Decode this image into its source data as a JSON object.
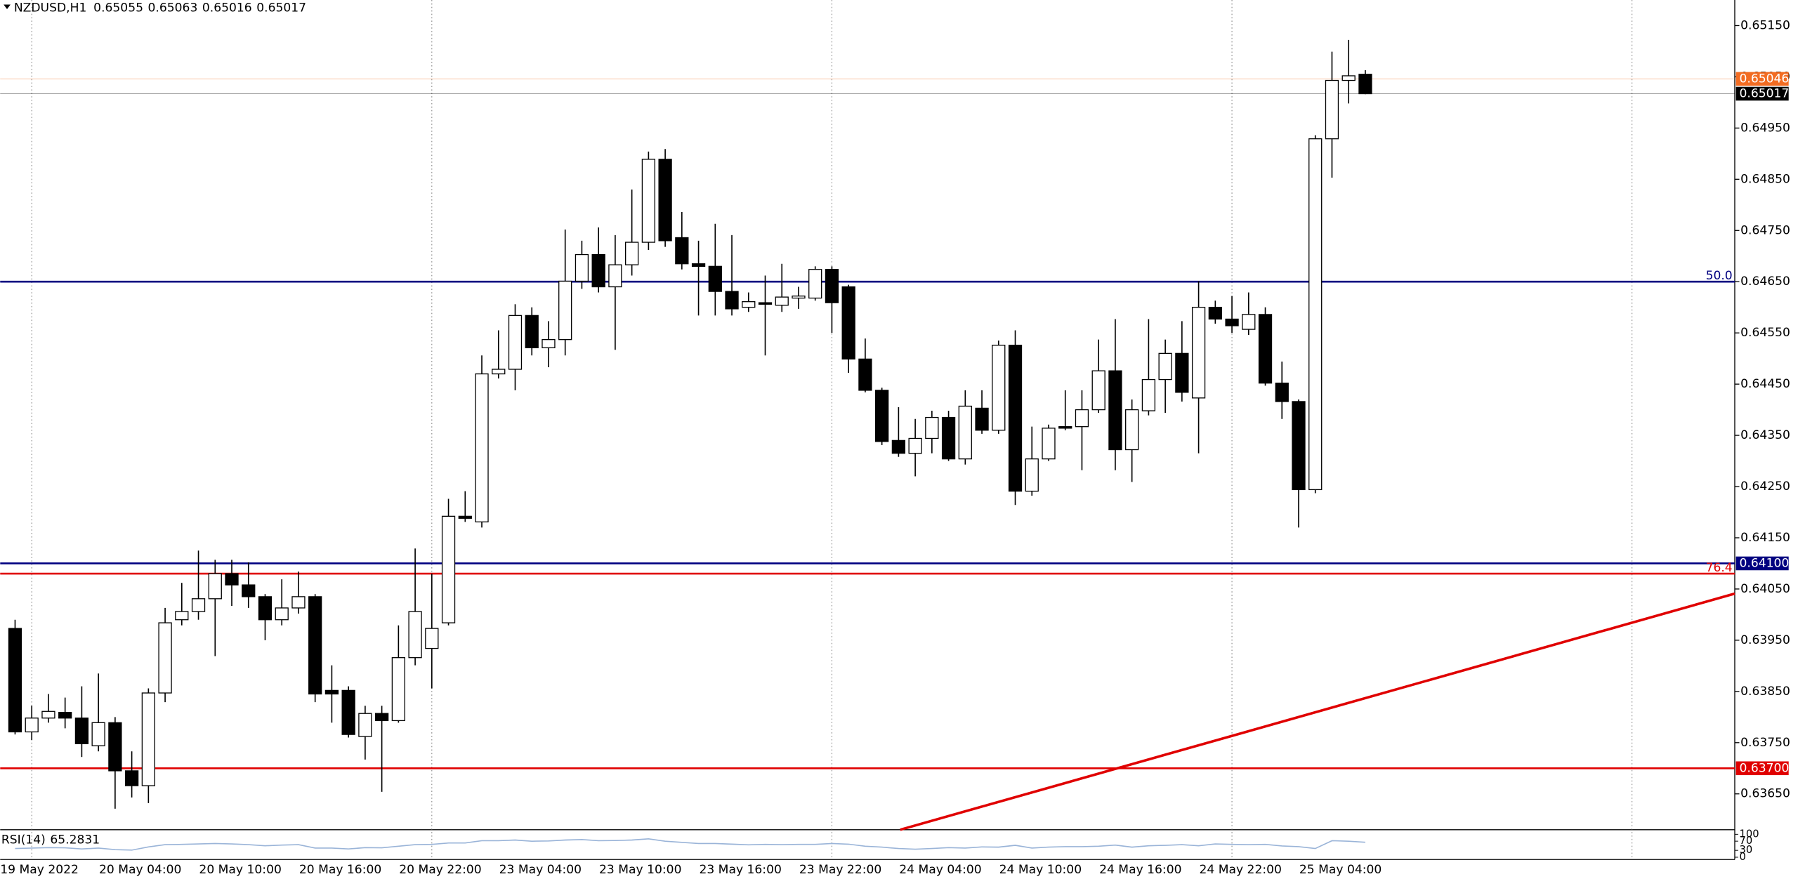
{
  "chart_data": {
    "type": "candlestick",
    "symbol": "NZDUSD,H1",
    "categories": [
      "19 May 2022",
      null,
      null,
      null,
      null,
      null,
      "20 May 04:00",
      null,
      null,
      null,
      null,
      null,
      "20 May 10:00",
      null,
      null,
      null,
      null,
      null,
      "20 May 16:00",
      null,
      null,
      null,
      null,
      null,
      "20 May 22:00",
      null,
      null,
      null,
      null,
      null,
      "23 May 04:00",
      null,
      null,
      null,
      null,
      null,
      "23 May 10:00",
      null,
      null,
      null,
      null,
      null,
      "23 May 16:00",
      null,
      null,
      null,
      null,
      null,
      "23 May 22:00",
      null,
      null,
      null,
      null,
      null,
      "24 May 04:00",
      null,
      null,
      null,
      null,
      null,
      "24 May 10:00",
      null,
      null,
      null,
      null,
      null,
      "24 May 16:00",
      null,
      null,
      null,
      null,
      null,
      "24 May 22:00",
      null,
      null,
      null,
      null,
      null,
      "25 May 04:00",
      null,
      null,
      null
    ],
    "open": [
      0.63973,
      0.63771,
      0.63798,
      0.63809,
      0.63798,
      0.63744,
      0.63789,
      0.63695,
      0.63666,
      0.63847,
      0.6399,
      0.64006,
      0.64031,
      0.6408,
      0.64058,
      0.64035,
      0.6399,
      0.64013,
      0.64035,
      0.63852,
      0.63852,
      0.63762,
      0.63807,
      0.63793,
      0.63916,
      0.63934,
      0.63984,
      0.64192,
      0.64181,
      0.6447,
      0.64479,
      0.64584,
      0.64521,
      0.64537,
      0.64651,
      0.64703,
      0.6464,
      0.64683,
      0.64727,
      0.64889,
      0.64736,
      0.64685,
      0.6468,
      0.64631,
      0.646,
      0.64609,
      0.64604,
      0.64618,
      0.64618,
      0.64674,
      0.6464,
      0.64499,
      0.64438,
      0.6434,
      0.64315,
      0.64344,
      0.64385,
      0.64304,
      0.64403,
      0.6436,
      0.64526,
      0.64241,
      0.64304,
      0.64367,
      0.64367,
      0.644,
      0.64476,
      0.64322,
      0.64398,
      0.64459,
      0.6451,
      0.64423,
      0.646,
      0.64577,
      0.64557,
      0.64586,
      0.64452,
      0.64416,
      0.64244,
      0.64929,
      0.65043,
      0.65055
    ],
    "high": [
      0.6399,
      0.63822,
      0.63845,
      0.63838,
      0.6386,
      0.63885,
      0.638,
      0.63733,
      0.63856,
      0.64013,
      0.64062,
      0.64125,
      0.64107,
      0.64107,
      0.64102,
      0.6404,
      0.64069,
      0.64084,
      0.6404,
      0.63901,
      0.6386,
      0.63822,
      0.63822,
      0.63979,
      0.64129,
      0.6408,
      0.64226,
      0.64241,
      0.64506,
      0.64555,
      0.64606,
      0.646,
      0.64573,
      0.64752,
      0.6473,
      0.64756,
      0.64741,
      0.6483,
      0.64904,
      0.64909,
      0.64786,
      0.6473,
      0.64763,
      0.64741,
      0.64629,
      0.64662,
      0.64685,
      0.6464,
      0.6468,
      0.6468,
      0.64644,
      0.64539,
      0.64443,
      0.64405,
      0.64382,
      0.64398,
      0.64398,
      0.64438,
      0.64438,
      0.64535,
      0.64555,
      0.64367,
      0.64371,
      0.64438,
      0.64438,
      0.64537,
      0.64577,
      0.6442,
      0.64577,
      0.64537,
      0.64573,
      0.64651,
      0.64613,
      0.64622,
      0.64629,
      0.646,
      0.64494,
      0.6442,
      0.64936,
      0.65099,
      0.65122,
      0.65063
    ],
    "low": [
      0.63766,
      0.63755,
      0.63789,
      0.63778,
      0.63722,
      0.63733,
      0.63621,
      0.63643,
      0.63632,
      0.63829,
      0.63979,
      0.6399,
      0.63919,
      0.64017,
      0.64013,
      0.6395,
      0.63979,
      0.64002,
      0.63829,
      0.63789,
      0.6376,
      0.63717,
      0.63654,
      0.63789,
      0.63901,
      0.63856,
      0.63979,
      0.64181,
      0.6417,
      0.64461,
      0.64438,
      0.64506,
      0.64483,
      0.64506,
      0.64636,
      0.64629,
      0.64517,
      0.64662,
      0.64712,
      0.64718,
      0.64674,
      0.64584,
      0.64584,
      0.64584,
      0.64591,
      0.64506,
      0.64591,
      0.64597,
      0.64613,
      0.6455,
      0.64472,
      0.64434,
      0.64331,
      0.64308,
      0.6427,
      0.64315,
      0.643,
      0.64293,
      0.64353,
      0.64353,
      0.64214,
      0.64232,
      0.643,
      0.6436,
      0.64282,
      0.64394,
      0.64282,
      0.64259,
      0.64389,
      0.64394,
      0.64416,
      0.64315,
      0.64568,
      0.6455,
      0.64546,
      0.64447,
      0.64382,
      0.6417,
      0.64237,
      0.64853,
      0.64998,
      0.65016
    ],
    "close": [
      0.63771,
      0.63798,
      0.63811,
      0.63798,
      0.63748,
      0.63789,
      0.63695,
      0.63666,
      0.63847,
      0.63984,
      0.64006,
      0.64031,
      0.6408,
      0.64058,
      0.64035,
      0.6399,
      0.64013,
      0.64035,
      0.63845,
      0.63845,
      0.63766,
      0.63807,
      0.63793,
      0.63916,
      0.64006,
      0.63973,
      0.64192,
      0.64188,
      0.6447,
      0.64479,
      0.64584,
      0.64521,
      0.64537,
      0.64651,
      0.64703,
      0.6464,
      0.64683,
      0.64727,
      0.64889,
      0.6473,
      0.64685,
      0.6468,
      0.64631,
      0.64597,
      0.64611,
      0.64606,
      0.6462,
      0.64622,
      0.64674,
      0.64609,
      0.64499,
      0.64438,
      0.64338,
      0.64315,
      0.64344,
      0.64385,
      0.64304,
      0.64407,
      0.6436,
      0.64526,
      0.64241,
      0.64304,
      0.64364,
      0.64364,
      0.644,
      0.64476,
      0.64322,
      0.644,
      0.64459,
      0.6451,
      0.64434,
      0.646,
      0.64577,
      0.64564,
      0.64586,
      0.64452,
      0.64416,
      0.64244,
      0.64929,
      0.65043,
      0.65052,
      0.65017
    ],
    "up_color": "#ffffff",
    "down_color": "#000000",
    "ylim": [
      0.6358,
      0.652
    ],
    "yticks": [
      {
        "value": 0.6515,
        "label": "0.65150"
      },
      {
        "value": 0.6505,
        "label": "0.65050"
      },
      {
        "value": 0.6495,
        "label": "0.64950"
      },
      {
        "value": 0.6485,
        "label": "0.64850"
      },
      {
        "value": 0.6475,
        "label": "0.64750"
      },
      {
        "value": 0.6465,
        "label": "0.64650"
      },
      {
        "value": 0.6455,
        "label": "0.64550"
      },
      {
        "value": 0.6445,
        "label": "0.64450"
      },
      {
        "value": 0.6435,
        "label": "0.64350"
      },
      {
        "value": 0.6425,
        "label": "0.64250"
      },
      {
        "value": 0.6415,
        "label": "0.64150"
      },
      {
        "value": 0.6405,
        "label": "0.64050"
      },
      {
        "value": 0.6395,
        "label": "0.63950"
      },
      {
        "value": 0.6385,
        "label": "0.63850"
      },
      {
        "value": 0.6375,
        "label": "0.63750"
      },
      {
        "value": 0.6365,
        "label": "0.63650"
      }
    ],
    "levels": [
      {
        "price": {
          "value": 0.6465,
          "label": "0.64650"
        },
        "color": "#000080",
        "text": "50.0",
        "box": false
      },
      {
        "price": {
          "value": 0.641,
          "label": "0.64100"
        },
        "color": "#000080",
        "box": true
      },
      {
        "price": 0.6408,
        "color": "#e00000",
        "text": "76.4",
        "box": false
      },
      {
        "price": {
          "value": 0.637,
          "label": "0.63700"
        },
        "color": "#e00000",
        "box": true
      },
      {
        "price": 0.65046,
        "color": "#f26c22",
        "box": true
      },
      {
        "price": 0.65017,
        "color": "#000000",
        "box": true
      }
    ],
    "trendline": {
      "color": "#e00000",
      "start": {
        "bar": 53.1,
        "price": 0.6358
      },
      "end": {
        "bar": 103.2,
        "price": 0.64041
      }
    },
    "rsi": {
      "name": "RSI(14)",
      "color": "#9ab4d8",
      "ylim": [
        0,
        100
      ],
      "yticks": [
        0,
        30,
        70,
        100
      ],
      "values": [
        38,
        40,
        42,
        41,
        36,
        40,
        33,
        31,
        45,
        55,
        56,
        58,
        60,
        58,
        55,
        50,
        53,
        55,
        40,
        40,
        36,
        42,
        41,
        48,
        55,
        56,
        62,
        62,
        72,
        72,
        75,
        70,
        71,
        75,
        77,
        72,
        73,
        75,
        80,
        70,
        65,
        60,
        60,
        57,
        54,
        56,
        55,
        56,
        56,
        60,
        57,
        48,
        44,
        38,
        35,
        38,
        42,
        40,
        45,
        44,
        52,
        40,
        44,
        46,
        46,
        48,
        53,
        44,
        50,
        52,
        55,
        50,
        58,
        56,
        55,
        56,
        49,
        46,
        38,
        72,
        70,
        65.2831
      ]
    }
  }
}
